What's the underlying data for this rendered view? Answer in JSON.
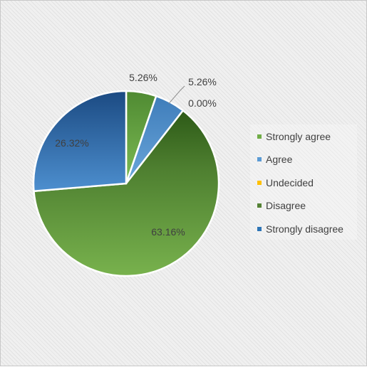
{
  "chart_data": {
    "type": "pie",
    "categories": [
      "Strongly agree",
      "Agree",
      "Undecided",
      "Disagree",
      "Strongly disagree"
    ],
    "values": [
      5.26,
      5.26,
      0.0,
      63.16,
      26.32
    ],
    "data_labels": [
      "5.26%",
      "5.26%",
      "0.00%",
      "63.16%",
      "26.32%"
    ],
    "colors": [
      "#70ad47",
      "#5b9bd5",
      "#ffc000",
      "#548235",
      "#2e75b6"
    ],
    "start_angle_deg": 0,
    "direction": "clockwise",
    "legend_position": "right"
  }
}
